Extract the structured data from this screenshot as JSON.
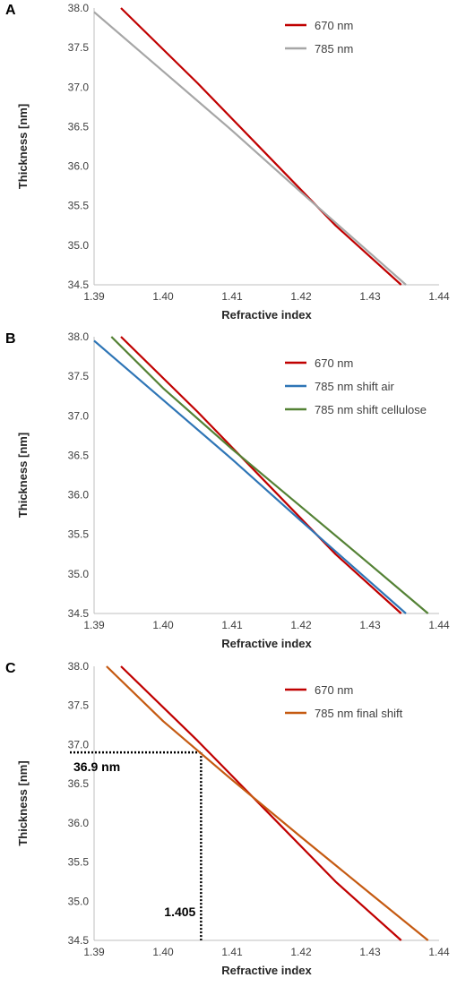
{
  "chart_data": [
    {
      "panel_label": "A",
      "type": "line",
      "xlabel": "Refractive index",
      "ylabel": "Thickness [nm]",
      "xlim": [
        1.39,
        1.44
      ],
      "ylim": [
        34.5,
        38.0
      ],
      "xticks": [
        "1.39",
        "1.40",
        "1.41",
        "1.42",
        "1.43",
        "1.44"
      ],
      "yticks": [
        "34.5",
        "35.0",
        "35.5",
        "36.0",
        "36.5",
        "37.0",
        "37.5",
        "38.0"
      ],
      "grid": false,
      "legend_position": "top-right",
      "series": [
        {
          "name": "670 nm",
          "color": "#c00000",
          "x": [
            1.3939,
            1.405,
            1.415,
            1.425,
            1.4345
          ],
          "y": [
            38.0,
            37.05,
            36.15,
            35.25,
            34.5
          ]
        },
        {
          "name": "785 nm",
          "color": "#a6a6a6",
          "x": [
            1.39,
            1.4,
            1.41,
            1.42,
            1.43,
            1.4352
          ],
          "y": [
            37.95,
            37.2,
            36.45,
            35.67,
            34.9,
            34.5
          ]
        }
      ]
    },
    {
      "panel_label": "B",
      "type": "line",
      "xlabel": "Refractive index",
      "ylabel": "Thickness [nm]",
      "xlim": [
        1.39,
        1.44
      ],
      "ylim": [
        34.5,
        38.0
      ],
      "xticks": [
        "1.39",
        "1.40",
        "1.41",
        "1.42",
        "1.43",
        "1.44"
      ],
      "yticks": [
        "34.5",
        "35.0",
        "35.5",
        "36.0",
        "36.5",
        "37.0",
        "37.5",
        "38.0"
      ],
      "grid": false,
      "legend_position": "top-right",
      "series": [
        {
          "name": "670 nm",
          "color": "#c00000",
          "x": [
            1.3939,
            1.405,
            1.415,
            1.425,
            1.4345
          ],
          "y": [
            38.0,
            37.05,
            36.15,
            35.25,
            34.5
          ]
        },
        {
          "name": "785 nm shift air",
          "color": "#2e75b6",
          "x": [
            1.39,
            1.4,
            1.41,
            1.42,
            1.43,
            1.4352
          ],
          "y": [
            37.95,
            37.2,
            36.45,
            35.67,
            34.9,
            34.5
          ]
        },
        {
          "name": "785 nm shift cellulose",
          "color": "#548235",
          "x": [
            1.3925,
            1.4,
            1.41,
            1.42,
            1.43,
            1.4384
          ],
          "y": [
            38.0,
            37.35,
            36.58,
            35.85,
            35.12,
            34.5
          ]
        }
      ]
    },
    {
      "panel_label": "C",
      "type": "line",
      "xlabel": "Refractive index",
      "ylabel": "Thickness [nm]",
      "xlim": [
        1.39,
        1.44
      ],
      "ylim": [
        34.5,
        38.0
      ],
      "xticks": [
        "1.39",
        "1.40",
        "1.41",
        "1.42",
        "1.43",
        "1.44"
      ],
      "yticks": [
        "34.5",
        "35.0",
        "35.5",
        "36.0",
        "36.5",
        "37.0",
        "37.5",
        "38.0"
      ],
      "grid": false,
      "legend_position": "top-right",
      "series": [
        {
          "name": "670 nm",
          "color": "#c00000",
          "x": [
            1.3939,
            1.405,
            1.415,
            1.425,
            1.4345
          ],
          "y": [
            38.0,
            37.05,
            36.15,
            35.25,
            34.5
          ]
        },
        {
          "name": "785 nm final shift",
          "color": "#c55a11",
          "x": [
            1.3918,
            1.4,
            1.41,
            1.42,
            1.43,
            1.4384
          ],
          "y": [
            38.0,
            37.3,
            36.55,
            35.82,
            35.1,
            34.5
          ]
        }
      ],
      "annotations": [
        {
          "label": "36.9 nm",
          "x": 1.4055,
          "y": 36.9,
          "kind": "horizontal-guide"
        },
        {
          "label": "1.405",
          "x": 1.4055,
          "y": 36.9,
          "kind": "vertical-guide"
        }
      ]
    }
  ]
}
